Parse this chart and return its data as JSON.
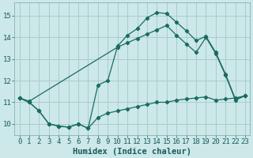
{
  "xlabel": "Humidex (Indice chaleur)",
  "xlim": [
    -0.5,
    23.5
  ],
  "ylim": [
    9.5,
    15.6
  ],
  "yticks": [
    10,
    11,
    12,
    13,
    14,
    15
  ],
  "xticks": [
    0,
    1,
    2,
    3,
    4,
    5,
    6,
    7,
    8,
    9,
    10,
    11,
    12,
    13,
    14,
    15,
    16,
    17,
    18,
    19,
    20,
    21,
    22,
    23
  ],
  "bg_color": "#cce8e8",
  "grid_color": "#aacccc",
  "line_color": "#1a6b60",
  "line1_x": [
    0,
    1,
    2,
    3,
    4,
    5,
    6,
    7,
    8,
    9,
    10,
    11,
    12,
    13,
    14,
    15,
    16,
    17,
    18,
    19,
    20,
    21,
    22,
    23
  ],
  "line1_y": [
    11.2,
    11.0,
    10.6,
    10.0,
    9.9,
    9.85,
    10.0,
    9.8,
    10.3,
    10.5,
    10.6,
    10.7,
    10.8,
    10.9,
    11.0,
    11.0,
    11.1,
    11.15,
    11.2,
    11.25,
    11.1,
    11.15,
    11.2,
    11.3
  ],
  "line2_x": [
    0,
    1,
    2,
    3,
    4,
    5,
    6,
    7,
    8,
    9,
    10,
    11,
    12,
    13,
    14,
    15,
    16,
    17,
    18,
    19,
    20,
    21,
    22,
    23
  ],
  "line2_y": [
    11.2,
    11.0,
    10.6,
    10.0,
    9.9,
    9.85,
    10.0,
    9.8,
    11.8,
    12.0,
    13.6,
    14.1,
    14.4,
    14.9,
    15.15,
    15.1,
    14.7,
    14.3,
    13.85,
    14.05,
    13.3,
    12.3,
    11.15,
    11.3
  ],
  "line3_x": [
    0,
    1,
    10,
    11,
    12,
    13,
    14,
    15,
    16,
    17,
    18,
    19,
    20,
    21,
    22,
    23
  ],
  "line3_y": [
    11.2,
    11.05,
    13.55,
    13.75,
    13.95,
    14.15,
    14.35,
    14.55,
    14.1,
    13.7,
    13.3,
    14.0,
    13.25,
    12.25,
    11.1,
    11.3
  ],
  "font_family": "monospace",
  "tick_fontsize": 6.5,
  "label_fontsize": 7.5
}
